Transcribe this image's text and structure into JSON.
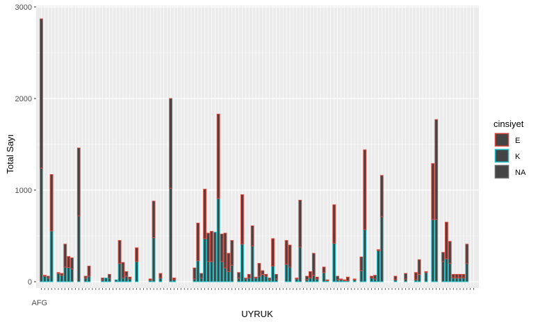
{
  "chart_data": {
    "type": "bar",
    "stacked": true,
    "xlabel": "UYRUK",
    "ylabel": "Total Sayı",
    "ylim": [
      0,
      3000
    ],
    "yticks": [
      0,
      1000,
      2000,
      3000
    ],
    "first_category_label": "AFG",
    "grid": true,
    "legend": {
      "title": "cinsiyet",
      "placement": "right",
      "entries": [
        {
          "key": "E",
          "outline": "#E0463C"
        },
        {
          "key": "K",
          "outline": "#17C2C8"
        },
        {
          "key": "NA",
          "outline": "#666666"
        }
      ]
    },
    "colors": {
      "panel": "#EBEBEB",
      "grid": "#FFFFFF",
      "bar_fill": "#444444",
      "E": "#E0463C",
      "K": "#17C2C8",
      "NA": "#666666"
    },
    "series": [
      {
        "name": "K",
        "values": [
          1240,
          60,
          40,
          555,
          0,
          90,
          70,
          160,
          155,
          140,
          0,
          720,
          0,
          40,
          60,
          0,
          0,
          0,
          20,
          40,
          40,
          0,
          20,
          200,
          40,
          60,
          30,
          0,
          220,
          0,
          0,
          0,
          15,
          480,
          0,
          40,
          0,
          0,
          1020,
          20,
          0,
          0,
          0,
          0,
          0,
          30,
          230,
          40,
          470,
          220,
          220,
          540,
          910,
          220,
          150,
          110,
          180,
          0,
          40,
          410,
          30,
          40,
          390,
          40,
          60,
          80,
          60,
          20,
          170,
          30,
          0,
          0,
          190,
          160,
          0,
          30,
          380,
          0,
          20,
          40,
          70,
          30,
          0,
          100,
          10,
          0,
          420,
          20,
          20,
          10,
          10,
          0,
          20,
          0,
          120,
          570,
          0,
          40,
          30,
          340,
          710,
          0,
          0,
          0,
          20,
          0,
          0,
          30,
          0,
          0,
          20,
          80,
          0,
          100,
          0,
          680,
          680,
          0,
          220,
          250,
          200,
          40,
          40,
          40,
          40,
          200,
          0,
          0
        ]
      },
      {
        "name": "E",
        "values": [
          1630,
          10,
          20,
          615,
          0,
          10,
          20,
          250,
          120,
          120,
          0,
          740,
          0,
          20,
          110,
          0,
          0,
          0,
          20,
          0,
          40,
          0,
          0,
          250,
          170,
          50,
          20,
          0,
          150,
          0,
          0,
          0,
          15,
          400,
          0,
          50,
          0,
          0,
          980,
          20,
          0,
          0,
          0,
          0,
          0,
          120,
          410,
          50,
          540,
          310,
          330,
          0,
          920,
          300,
          380,
          200,
          270,
          0,
          60,
          540,
          10,
          40,
          220,
          10,
          140,
          40,
          20,
          20,
          300,
          50,
          0,
          0,
          260,
          240,
          0,
          10,
          510,
          0,
          40,
          70,
          240,
          20,
          0,
          60,
          10,
          0,
          420,
          40,
          10,
          10,
          40,
          0,
          10,
          0,
          150,
          870,
          0,
          20,
          40,
          10,
          450,
          0,
          0,
          0,
          40,
          0,
          0,
          60,
          0,
          0,
          80,
          160,
          0,
          10,
          0,
          610,
          1090,
          0,
          100,
          400,
          240,
          40,
          40,
          40,
          40,
          210,
          0,
          0
        ]
      }
    ]
  }
}
